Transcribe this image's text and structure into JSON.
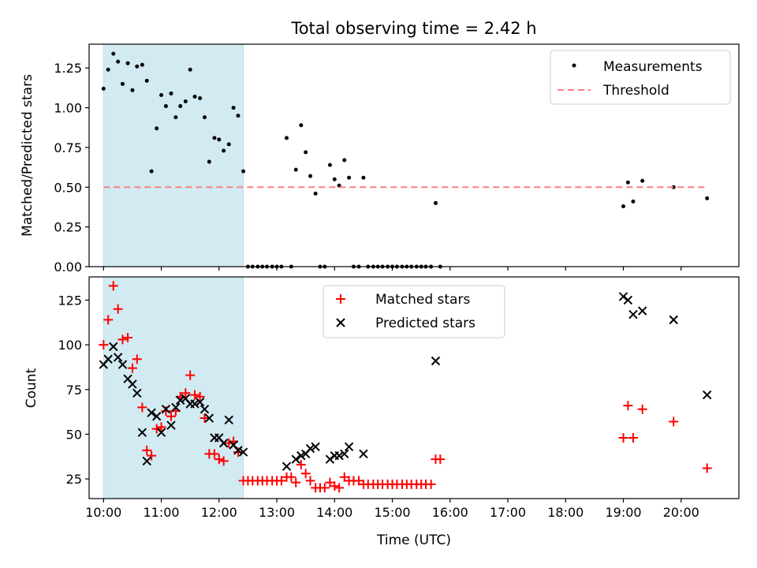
{
  "chart_data": [
    {
      "type": "scatter",
      "title": "Total observing time = 2.42 h",
      "ylabel": "Matched/Predicted stars",
      "xlabel": "",
      "xlim": [
        9.75,
        21.0
      ],
      "ylim": [
        0.0,
        1.4
      ],
      "x_ticks": [
        10,
        11,
        12,
        13,
        14,
        15,
        16,
        17,
        18,
        19,
        20
      ],
      "y_ticks": [
        0.0,
        0.25,
        0.5,
        0.75,
        1.0,
        1.25
      ],
      "y_tick_labels": [
        "0.00",
        "0.25",
        "0.50",
        "0.75",
        "1.00",
        "1.25"
      ],
      "shaded_span": {
        "x0": 10.0,
        "x1": 12.42,
        "color": "#add8e6"
      },
      "legend_position": "upper right",
      "series": [
        {
          "name": "Measurements",
          "kind": "points",
          "color": "#000000",
          "x": [
            10.0,
            10.08,
            10.17,
            10.25,
            10.33,
            10.42,
            10.5,
            10.58,
            10.67,
            10.75,
            10.83,
            10.92,
            11.0,
            11.08,
            11.17,
            11.25,
            11.33,
            11.42,
            11.5,
            11.58,
            11.67,
            11.75,
            11.83,
            11.92,
            12.0,
            12.08,
            12.17,
            12.25,
            12.33,
            12.42,
            12.5,
            12.58,
            12.67,
            12.75,
            12.83,
            12.92,
            13.0,
            13.08,
            13.17,
            13.25,
            13.33,
            13.42,
            13.5,
            13.58,
            13.67,
            13.75,
            13.83,
            13.92,
            14.0,
            14.08,
            14.17,
            14.25,
            14.33,
            14.42,
            14.5,
            14.58,
            14.67,
            14.75,
            14.83,
            14.92,
            15.0,
            15.08,
            15.17,
            15.25,
            15.33,
            15.42,
            15.5,
            15.58,
            15.67,
            15.75,
            15.83,
            19.0,
            19.08,
            19.17,
            19.33,
            19.87,
            20.45
          ],
          "y": [
            1.12,
            1.24,
            1.34,
            1.29,
            1.15,
            1.28,
            1.11,
            1.26,
            1.27,
            1.17,
            0.6,
            0.87,
            1.08,
            1.01,
            1.09,
            0.94,
            1.01,
            1.04,
            1.24,
            1.07,
            1.06,
            0.94,
            0.66,
            0.81,
            0.8,
            0.73,
            0.77,
            1.0,
            0.95,
            0.6,
            0.0,
            0.0,
            0.0,
            0.0,
            0.0,
            0.0,
            0.0,
            0.0,
            0.81,
            0.0,
            0.61,
            0.89,
            0.72,
            0.57,
            0.46,
            0.0,
            0.0,
            0.64,
            0.55,
            0.51,
            0.67,
            0.56,
            0.0,
            0.0,
            0.56,
            0.0,
            0.0,
            0.0,
            0.0,
            0.0,
            0.0,
            0.0,
            0.0,
            0.0,
            0.0,
            0.0,
            0.0,
            0.0,
            0.0,
            0.4,
            0.0,
            0.38,
            0.53,
            0.41,
            0.54,
            0.5,
            0.43
          ]
        },
        {
          "name": "Threshold",
          "kind": "dashed-line",
          "color": "#ff7f7f",
          "x": [
            10.0,
            20.45
          ],
          "y": [
            0.5,
            0.5
          ]
        }
      ]
    },
    {
      "type": "scatter",
      "title": "",
      "xlabel": "Time (UTC)",
      "ylabel": "Count",
      "xlim": [
        9.75,
        21.0
      ],
      "ylim": [
        14,
        138
      ],
      "x_ticks": [
        10,
        11,
        12,
        13,
        14,
        15,
        16,
        17,
        18,
        19,
        20
      ],
      "x_tick_labels": [
        "10:00",
        "11:00",
        "12:00",
        "13:00",
        "14:00",
        "15:00",
        "16:00",
        "17:00",
        "18:00",
        "19:00",
        "20:00"
      ],
      "y_ticks": [
        25,
        50,
        75,
        100,
        125
      ],
      "y_tick_labels": [
        "25",
        "50",
        "75",
        "100",
        "125"
      ],
      "shaded_span": {
        "x0": 10.0,
        "x1": 12.42,
        "color": "#add8e6"
      },
      "legend_position": "upper center",
      "series": [
        {
          "name": "Matched stars",
          "marker": "plus",
          "color": "#ff0000",
          "x": [
            10.0,
            10.08,
            10.17,
            10.25,
            10.33,
            10.42,
            10.5,
            10.58,
            10.67,
            10.75,
            10.83,
            10.92,
            11.0,
            11.08,
            11.17,
            11.25,
            11.33,
            11.42,
            11.5,
            11.58,
            11.67,
            11.75,
            11.83,
            11.92,
            12.0,
            12.08,
            12.17,
            12.25,
            12.33,
            12.42,
            12.5,
            12.58,
            12.67,
            12.75,
            12.83,
            12.92,
            13.0,
            13.08,
            13.17,
            13.25,
            13.33,
            13.42,
            13.5,
            13.58,
            13.67,
            13.75,
            13.83,
            13.92,
            14.0,
            14.08,
            14.17,
            14.25,
            14.33,
            14.42,
            14.5,
            14.58,
            14.67,
            14.75,
            14.83,
            14.92,
            15.0,
            15.08,
            15.17,
            15.25,
            15.33,
            15.42,
            15.5,
            15.58,
            15.67,
            15.75,
            15.83,
            19.0,
            19.08,
            19.17,
            19.33,
            19.87,
            20.45
          ],
          "y": [
            100,
            114,
            133,
            120,
            103,
            104,
            87,
            92,
            65,
            41,
            38,
            53,
            54,
            63,
            60,
            63,
            71,
            73,
            83,
            72,
            71,
            59,
            39,
            39,
            36,
            35,
            45,
            46,
            40,
            24,
            24,
            24,
            24,
            24,
            24,
            24,
            24,
            24,
            26,
            26,
            23,
            33,
            28,
            24,
            20,
            20,
            20,
            23,
            21,
            20,
            26,
            24,
            24,
            24,
            22,
            22,
            22,
            22,
            22,
            22,
            22,
            22,
            22,
            22,
            22,
            22,
            22,
            22,
            22,
            36,
            36,
            48,
            66,
            48,
            64,
            57,
            31
          ]
        },
        {
          "name": "Predicted stars",
          "marker": "x",
          "color": "#000000",
          "x": [
            10.0,
            10.08,
            10.17,
            10.25,
            10.33,
            10.42,
            10.5,
            10.58,
            10.67,
            10.75,
            10.83,
            10.92,
            11.0,
            11.08,
            11.17,
            11.25,
            11.33,
            11.42,
            11.5,
            11.58,
            11.67,
            11.75,
            11.83,
            11.92,
            12.0,
            12.08,
            12.17,
            12.25,
            12.33,
            12.42,
            13.17,
            13.33,
            13.42,
            13.5,
            13.58,
            13.67,
            13.92,
            14.0,
            14.08,
            14.17,
            14.25,
            14.5,
            15.75,
            19.0,
            19.08,
            19.17,
            19.33,
            19.87,
            20.45
          ],
          "y": [
            89,
            92,
            99,
            93,
            89,
            81,
            78,
            73,
            51,
            35,
            62,
            60,
            51,
            64,
            55,
            65,
            69,
            70,
            67,
            67,
            68,
            64,
            59,
            48,
            48,
            45,
            58,
            44,
            41,
            40,
            32,
            36,
            38,
            39,
            42,
            43,
            36,
            38,
            38,
            39,
            43,
            39,
            91,
            127,
            125,
            117,
            119,
            114,
            72
          ]
        }
      ]
    }
  ]
}
